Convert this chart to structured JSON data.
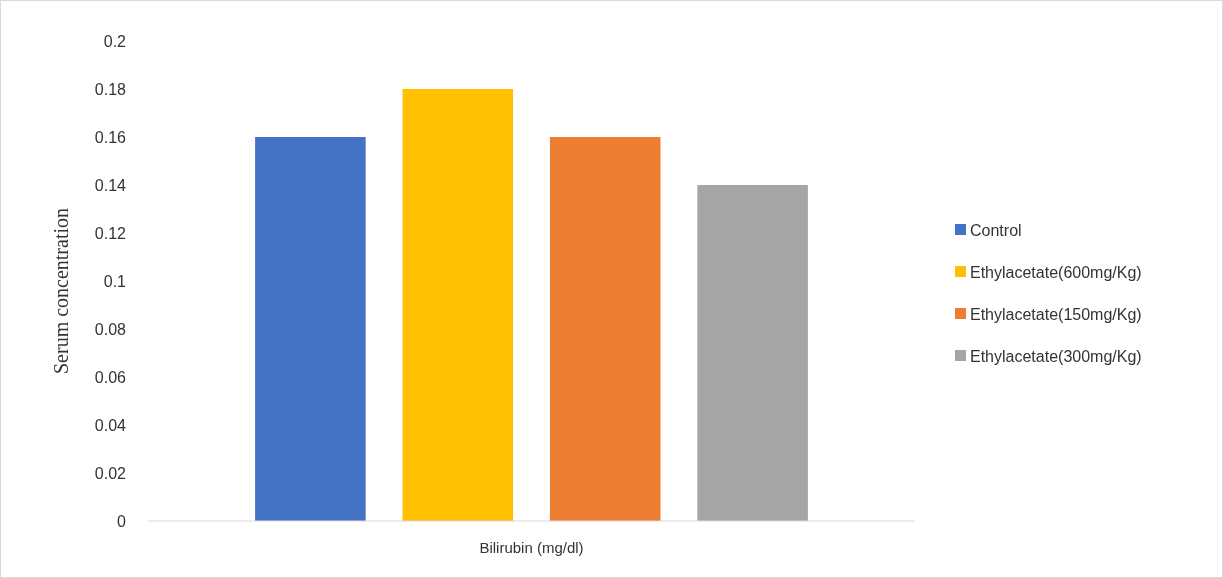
{
  "chart_data": {
    "type": "bar",
    "ylabel": "Serum concentration",
    "categories": [
      "Bilirubin (mg/dl)"
    ],
    "series": [
      {
        "name": "Control",
        "color": "#4472c4",
        "values": [
          0.16
        ]
      },
      {
        "name": "Ethylacetate(600mg/Kg)",
        "color": "#ffc000",
        "values": [
          0.18
        ]
      },
      {
        "name": "Ethylacetate(150mg/Kg)",
        "color": "#ed7d31",
        "values": [
          0.16
        ]
      },
      {
        "name": "Ethylacetate(300mg/Kg)",
        "color": "#a5a5a5",
        "values": [
          0.14
        ]
      }
    ],
    "ylim": [
      0,
      0.2
    ],
    "yticks": [
      0,
      0.02,
      0.04,
      0.06,
      0.08,
      0.1,
      0.12,
      0.14,
      0.16,
      0.18,
      0.2
    ],
    "grid": false,
    "legend": "right"
  }
}
